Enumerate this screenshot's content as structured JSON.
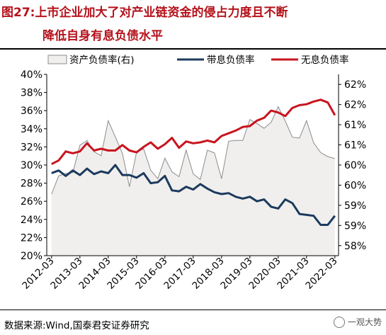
{
  "title": {
    "line1": "图27:上市企业加大了对产业链资金的侵占力度且不断",
    "line2": "降低自身有息负债水平"
  },
  "source": "数据来源:Wind,国泰君安证券研究",
  "watermark": {
    "icon": "wechat-icon",
    "text": "一观大势"
  },
  "colors": {
    "title": "#b5121b",
    "area_fill": "#f0efed",
    "area_stroke": "#8c8c8c",
    "interest_line": "#1c3a5e",
    "noninterest_line": "#c8141e"
  },
  "chart_data": {
    "type": "line",
    "legend": [
      "资产负债率(右)",
      "带息负债率",
      "无息负债率"
    ],
    "legend_position": "top",
    "x_tick_labels": [
      "2012-03",
      "2013-03",
      "2014-03",
      "2015-03",
      "2016-03",
      "2017-03",
      "2018-03",
      "2019-03",
      "2020-03",
      "2021-03",
      "2022-03"
    ],
    "left_axis": {
      "ylim": [
        20,
        40
      ],
      "ticks": [
        "40%",
        "38%",
        "36%",
        "34%",
        "32%",
        "30%",
        "28%",
        "26%",
        "24%",
        "22%",
        "20%"
      ]
    },
    "right_axis": {
      "ylim": [
        58,
        62.5
      ],
      "ticks": [
        "62%",
        "62%",
        "61%",
        "61%",
        "60%",
        "60%",
        "59%",
        "59%",
        "58%"
      ]
    },
    "grid": false,
    "series": [
      {
        "name": "资产负债率(右)",
        "axis": "right",
        "style": "area",
        "x": [
          2012.17,
          2012.42,
          2012.67,
          2012.92,
          2013.17,
          2013.42,
          2013.67,
          2013.92,
          2014.17,
          2014.42,
          2014.67,
          2014.92,
          2015.17,
          2015.42,
          2015.67,
          2015.92,
          2016.17,
          2016.42,
          2016.67,
          2016.92,
          2017.17,
          2017.42,
          2017.67,
          2017.92,
          2018.17,
          2018.42,
          2018.67,
          2018.92,
          2019.17,
          2019.42,
          2019.67,
          2019.92,
          2020.17,
          2020.42,
          2020.67,
          2020.92,
          2021.17,
          2021.42,
          2021.67,
          2021.92,
          2022.17
        ],
        "values": [
          59.53,
          59.98,
          60.04,
          60.06,
          60.74,
          60.86,
          60.58,
          60.48,
          61.35,
          60.95,
          60.54,
          59.71,
          60.57,
          60.65,
          60.12,
          59.91,
          60.42,
          60.08,
          59.96,
          60.62,
          60.03,
          59.89,
          60.62,
          60.55,
          59.91,
          60.84,
          60.86,
          60.86,
          61.38,
          61.28,
          61.16,
          61.31,
          61.7,
          61.34,
          60.94,
          60.92,
          61.35,
          60.8,
          60.56,
          60.46,
          60.41
        ]
      },
      {
        "name": "带息负债率",
        "axis": "left",
        "style": "line",
        "x": [
          2012.17,
          2012.42,
          2012.67,
          2012.92,
          2013.17,
          2013.42,
          2013.67,
          2013.92,
          2014.17,
          2014.42,
          2014.67,
          2014.92,
          2015.17,
          2015.42,
          2015.67,
          2015.92,
          2016.17,
          2016.42,
          2016.67,
          2016.92,
          2017.17,
          2017.42,
          2017.67,
          2017.92,
          2018.17,
          2018.42,
          2018.67,
          2018.92,
          2019.17,
          2019.42,
          2019.67,
          2019.92,
          2020.17,
          2020.42,
          2020.67,
          2020.92,
          2021.17,
          2021.42,
          2021.67,
          2021.92,
          2022.17
        ],
        "values": [
          29.1,
          29.4,
          28.8,
          29.4,
          28.9,
          29.6,
          29.0,
          29.3,
          29.1,
          30.0,
          28.9,
          28.9,
          28.6,
          29.1,
          28.0,
          28.1,
          28.8,
          27.2,
          27.1,
          27.6,
          27.3,
          27.9,
          27.4,
          27.0,
          26.8,
          26.9,
          26.5,
          26.3,
          26.5,
          26.0,
          26.2,
          25.4,
          25.2,
          26.2,
          25.8,
          24.6,
          24.5,
          24.4,
          23.4,
          23.4,
          24.4
        ]
      },
      {
        "name": "无息负债率",
        "axis": "left",
        "style": "line",
        "x": [
          2012.17,
          2012.42,
          2012.67,
          2012.92,
          2013.17,
          2013.42,
          2013.67,
          2013.92,
          2014.17,
          2014.42,
          2014.67,
          2014.92,
          2015.17,
          2015.42,
          2015.67,
          2015.92,
          2016.17,
          2016.42,
          2016.67,
          2016.92,
          2017.17,
          2017.42,
          2017.67,
          2017.92,
          2018.17,
          2018.42,
          2018.67,
          2018.92,
          2019.17,
          2019.42,
          2019.67,
          2019.92,
          2020.17,
          2020.42,
          2020.67,
          2020.92,
          2021.17,
          2021.42,
          2021.67,
          2021.92,
          2022.17
        ],
        "values": [
          30.1,
          30.5,
          31.5,
          31.3,
          31.5,
          32.4,
          31.6,
          31.8,
          31.6,
          31.6,
          32.2,
          31.6,
          31.4,
          32.0,
          32.5,
          31.8,
          32.3,
          33.0,
          31.9,
          32.6,
          32.4,
          32.5,
          32.7,
          32.5,
          33.2,
          33.5,
          33.8,
          34.2,
          34.3,
          34.9,
          35.2,
          36.0,
          35.8,
          35.4,
          36.3,
          36.6,
          36.7,
          37.0,
          37.2,
          36.9,
          35.5
        ]
      }
    ]
  }
}
